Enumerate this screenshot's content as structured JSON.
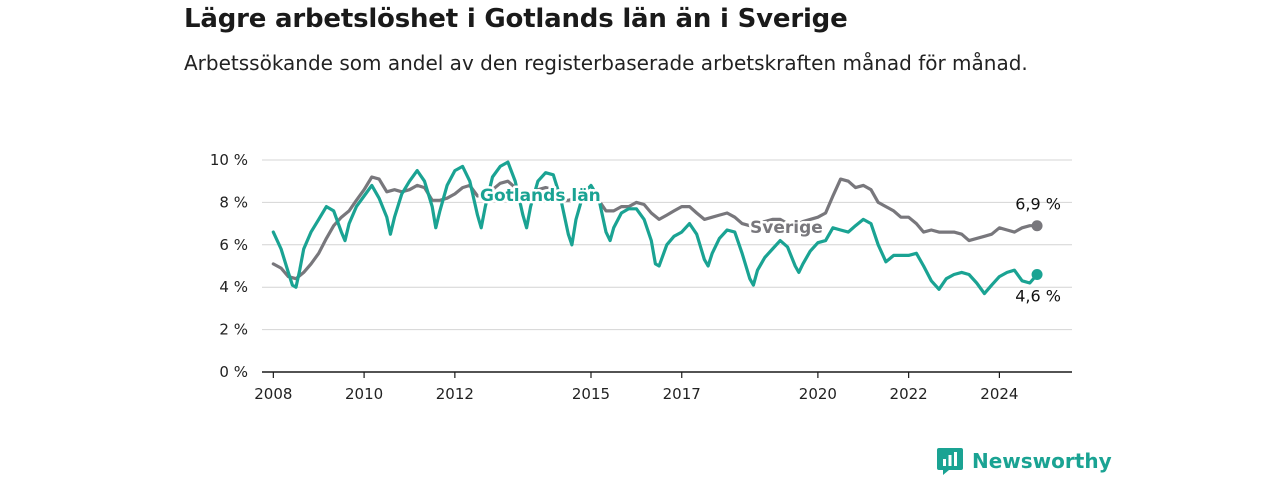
{
  "title": "Lägre arbetslöshet i Gotlands län än i Sverige",
  "subtitle": "Arbetssökande som andel av den registerbaserade arbetskraften månad för månad.",
  "brand": {
    "name": "Newsworthy",
    "icon": "newsworthy-logo-icon"
  },
  "colors": {
    "gotland": "#1aa393",
    "sverige": "#78777c",
    "grid": "#d4d4d4",
    "axis": "#1a1a1a"
  },
  "chart_data": {
    "type": "line",
    "title": "Lägre arbetslöshet i Gotlands län än i Sverige",
    "subtitle": "Arbetssökande som andel av den registerbaserade arbetskraften månad för månad.",
    "xlabel": "",
    "ylabel": "",
    "ylim": [
      0,
      10
    ],
    "xlim": [
      2007.75,
      2025.6
    ],
    "grid": true,
    "legend": "inline labels",
    "y_ticks": [
      0,
      2,
      4,
      6,
      8,
      10
    ],
    "y_tick_labels": [
      "0 %",
      "2 %",
      "4 %",
      "6 %",
      "8 %",
      "10 %"
    ],
    "x_ticks": [
      2008,
      2010,
      2012,
      2015,
      2017,
      2020,
      2022,
      2024
    ],
    "x_tick_labels": [
      "2008",
      "2010",
      "2012",
      "2015",
      "2017",
      "2020",
      "2022",
      "2024"
    ],
    "series": [
      {
        "name": "Sverige",
        "color": "#78777c",
        "end_label": "6,9 %",
        "points": [
          [
            2008.0,
            5.1
          ],
          [
            2008.17,
            4.9
          ],
          [
            2008.33,
            4.5
          ],
          [
            2008.5,
            4.4
          ],
          [
            2008.67,
            4.7
          ],
          [
            2008.83,
            5.1
          ],
          [
            2009.0,
            5.6
          ],
          [
            2009.17,
            6.3
          ],
          [
            2009.33,
            6.9
          ],
          [
            2009.5,
            7.3
          ],
          [
            2009.67,
            7.6
          ],
          [
            2009.83,
            8.1
          ],
          [
            2010.0,
            8.6
          ],
          [
            2010.17,
            9.2
          ],
          [
            2010.33,
            9.1
          ],
          [
            2010.5,
            8.5
          ],
          [
            2010.67,
            8.6
          ],
          [
            2010.83,
            8.5
          ],
          [
            2011.0,
            8.6
          ],
          [
            2011.17,
            8.8
          ],
          [
            2011.33,
            8.7
          ],
          [
            2011.5,
            8.1
          ],
          [
            2011.67,
            8.1
          ],
          [
            2011.83,
            8.2
          ],
          [
            2012.0,
            8.4
          ],
          [
            2012.17,
            8.7
          ],
          [
            2012.33,
            8.8
          ],
          [
            2012.5,
            8.3
          ],
          [
            2012.67,
            8.4
          ],
          [
            2012.83,
            8.6
          ],
          [
            2013.0,
            8.9
          ],
          [
            2013.17,
            9.0
          ],
          [
            2013.33,
            8.7
          ],
          [
            2013.5,
            8.4
          ],
          [
            2013.67,
            8.5
          ],
          [
            2013.83,
            8.6
          ],
          [
            2014.0,
            8.7
          ],
          [
            2014.17,
            8.6
          ],
          [
            2014.33,
            8.1
          ],
          [
            2014.5,
            8.1
          ],
          [
            2014.67,
            8.2
          ],
          [
            2014.83,
            8.4
          ],
          [
            2015.0,
            8.5
          ],
          [
            2015.17,
            8.1
          ],
          [
            2015.33,
            7.6
          ],
          [
            2015.5,
            7.6
          ],
          [
            2015.67,
            7.8
          ],
          [
            2015.83,
            7.8
          ],
          [
            2016.0,
            8.0
          ],
          [
            2016.17,
            7.9
          ],
          [
            2016.33,
            7.5
          ],
          [
            2016.5,
            7.2
          ],
          [
            2016.67,
            7.4
          ],
          [
            2016.83,
            7.6
          ],
          [
            2017.0,
            7.8
          ],
          [
            2017.17,
            7.8
          ],
          [
            2017.33,
            7.5
          ],
          [
            2017.5,
            7.2
          ],
          [
            2017.67,
            7.3
          ],
          [
            2017.83,
            7.4
          ],
          [
            2018.0,
            7.5
          ],
          [
            2018.17,
            7.3
          ],
          [
            2018.33,
            7.0
          ],
          [
            2018.5,
            6.9
          ],
          [
            2018.67,
            7.0
          ],
          [
            2018.83,
            7.1
          ],
          [
            2019.0,
            7.2
          ],
          [
            2019.17,
            7.2
          ],
          [
            2019.33,
            7.0
          ],
          [
            2019.5,
            6.9
          ],
          [
            2019.67,
            7.1
          ],
          [
            2019.83,
            7.2
          ],
          [
            2020.0,
            7.3
          ],
          [
            2020.17,
            7.5
          ],
          [
            2020.33,
            8.3
          ],
          [
            2020.5,
            9.1
          ],
          [
            2020.67,
            9.0
          ],
          [
            2020.83,
            8.7
          ],
          [
            2021.0,
            8.8
          ],
          [
            2021.17,
            8.6
          ],
          [
            2021.33,
            8.0
          ],
          [
            2021.5,
            7.8
          ],
          [
            2021.67,
            7.6
          ],
          [
            2021.83,
            7.3
          ],
          [
            2022.0,
            7.3
          ],
          [
            2022.17,
            7.0
          ],
          [
            2022.33,
            6.6
          ],
          [
            2022.5,
            6.7
          ],
          [
            2022.67,
            6.6
          ],
          [
            2022.83,
            6.6
          ],
          [
            2023.0,
            6.6
          ],
          [
            2023.17,
            6.5
          ],
          [
            2023.33,
            6.2
          ],
          [
            2023.5,
            6.3
          ],
          [
            2023.67,
            6.4
          ],
          [
            2023.83,
            6.5
          ],
          [
            2024.0,
            6.8
          ],
          [
            2024.17,
            6.7
          ],
          [
            2024.33,
            6.6
          ],
          [
            2024.5,
            6.8
          ],
          [
            2024.67,
            6.9
          ],
          [
            2024.83,
            6.9
          ]
        ]
      },
      {
        "name": "Gotlands län",
        "color": "#1aa393",
        "end_label": "4,6 %",
        "points": [
          [
            2008.0,
            6.6
          ],
          [
            2008.17,
            5.8
          ],
          [
            2008.33,
            4.7
          ],
          [
            2008.42,
            4.1
          ],
          [
            2008.5,
            4.0
          ],
          [
            2008.58,
            4.8
          ],
          [
            2008.67,
            5.8
          ],
          [
            2008.83,
            6.6
          ],
          [
            2009.0,
            7.2
          ],
          [
            2009.17,
            7.8
          ],
          [
            2009.33,
            7.6
          ],
          [
            2009.5,
            6.6
          ],
          [
            2009.58,
            6.2
          ],
          [
            2009.67,
            7.0
          ],
          [
            2009.83,
            7.8
          ],
          [
            2010.0,
            8.3
          ],
          [
            2010.17,
            8.8
          ],
          [
            2010.33,
            8.2
          ],
          [
            2010.5,
            7.3
          ],
          [
            2010.58,
            6.5
          ],
          [
            2010.67,
            7.3
          ],
          [
            2010.83,
            8.4
          ],
          [
            2011.0,
            9.0
          ],
          [
            2011.17,
            9.5
          ],
          [
            2011.33,
            9.0
          ],
          [
            2011.5,
            7.8
          ],
          [
            2011.58,
            6.8
          ],
          [
            2011.67,
            7.6
          ],
          [
            2011.83,
            8.8
          ],
          [
            2012.0,
            9.5
          ],
          [
            2012.17,
            9.7
          ],
          [
            2012.33,
            9.0
          ],
          [
            2012.5,
            7.4
          ],
          [
            2012.58,
            6.8
          ],
          [
            2012.67,
            7.8
          ],
          [
            2012.83,
            9.2
          ],
          [
            2013.0,
            9.7
          ],
          [
            2013.17,
            9.9
          ],
          [
            2013.33,
            9.0
          ],
          [
            2013.5,
            7.4
          ],
          [
            2013.58,
            6.8
          ],
          [
            2013.67,
            7.8
          ],
          [
            2013.83,
            9.0
          ],
          [
            2014.0,
            9.4
          ],
          [
            2014.17,
            9.3
          ],
          [
            2014.33,
            8.2
          ],
          [
            2014.5,
            6.5
          ],
          [
            2014.58,
            6.0
          ],
          [
            2014.67,
            7.2
          ],
          [
            2014.83,
            8.4
          ],
          [
            2015.0,
            8.8
          ],
          [
            2015.17,
            8.2
          ],
          [
            2015.33,
            6.6
          ],
          [
            2015.42,
            6.2
          ],
          [
            2015.5,
            6.8
          ],
          [
            2015.67,
            7.5
          ],
          [
            2015.83,
            7.7
          ],
          [
            2016.0,
            7.7
          ],
          [
            2016.17,
            7.2
          ],
          [
            2016.33,
            6.2
          ],
          [
            2016.42,
            5.1
          ],
          [
            2016.5,
            5.0
          ],
          [
            2016.67,
            6.0
          ],
          [
            2016.83,
            6.4
          ],
          [
            2017.0,
            6.6
          ],
          [
            2017.17,
            7.0
          ],
          [
            2017.33,
            6.5
          ],
          [
            2017.5,
            5.3
          ],
          [
            2017.58,
            5.0
          ],
          [
            2017.67,
            5.6
          ],
          [
            2017.83,
            6.3
          ],
          [
            2018.0,
            6.7
          ],
          [
            2018.17,
            6.6
          ],
          [
            2018.33,
            5.6
          ],
          [
            2018.5,
            4.4
          ],
          [
            2018.58,
            4.1
          ],
          [
            2018.67,
            4.8
          ],
          [
            2018.83,
            5.4
          ],
          [
            2019.0,
            5.8
          ],
          [
            2019.17,
            6.2
          ],
          [
            2019.33,
            5.9
          ],
          [
            2019.5,
            5.0
          ],
          [
            2019.58,
            4.7
          ],
          [
            2019.67,
            5.1
          ],
          [
            2019.83,
            5.7
          ],
          [
            2020.0,
            6.1
          ],
          [
            2020.17,
            6.2
          ],
          [
            2020.33,
            6.8
          ],
          [
            2020.5,
            6.7
          ],
          [
            2020.67,
            6.6
          ],
          [
            2020.83,
            6.9
          ],
          [
            2021.0,
            7.2
          ],
          [
            2021.17,
            7.0
          ],
          [
            2021.33,
            6.0
          ],
          [
            2021.5,
            5.2
          ],
          [
            2021.67,
            5.5
          ],
          [
            2021.83,
            5.5
          ],
          [
            2022.0,
            5.5
          ],
          [
            2022.17,
            5.6
          ],
          [
            2022.33,
            5.0
          ],
          [
            2022.5,
            4.3
          ],
          [
            2022.67,
            3.9
          ],
          [
            2022.83,
            4.4
          ],
          [
            2023.0,
            4.6
          ],
          [
            2023.17,
            4.7
          ],
          [
            2023.33,
            4.6
          ],
          [
            2023.5,
            4.2
          ],
          [
            2023.67,
            3.7
          ],
          [
            2023.83,
            4.1
          ],
          [
            2024.0,
            4.5
          ],
          [
            2024.17,
            4.7
          ],
          [
            2024.33,
            4.8
          ],
          [
            2024.5,
            4.3
          ],
          [
            2024.67,
            4.2
          ],
          [
            2024.83,
            4.6
          ]
        ]
      }
    ],
    "annotations": [
      {
        "text": "Gotlands län",
        "series": "Gotlands län"
      },
      {
        "text": "Sverige",
        "series": "Sverige"
      },
      {
        "text": "6,9 %",
        "series": "Sverige",
        "at": "end"
      },
      {
        "text": "4,6 %",
        "series": "Gotlands län",
        "at": "end"
      }
    ]
  }
}
